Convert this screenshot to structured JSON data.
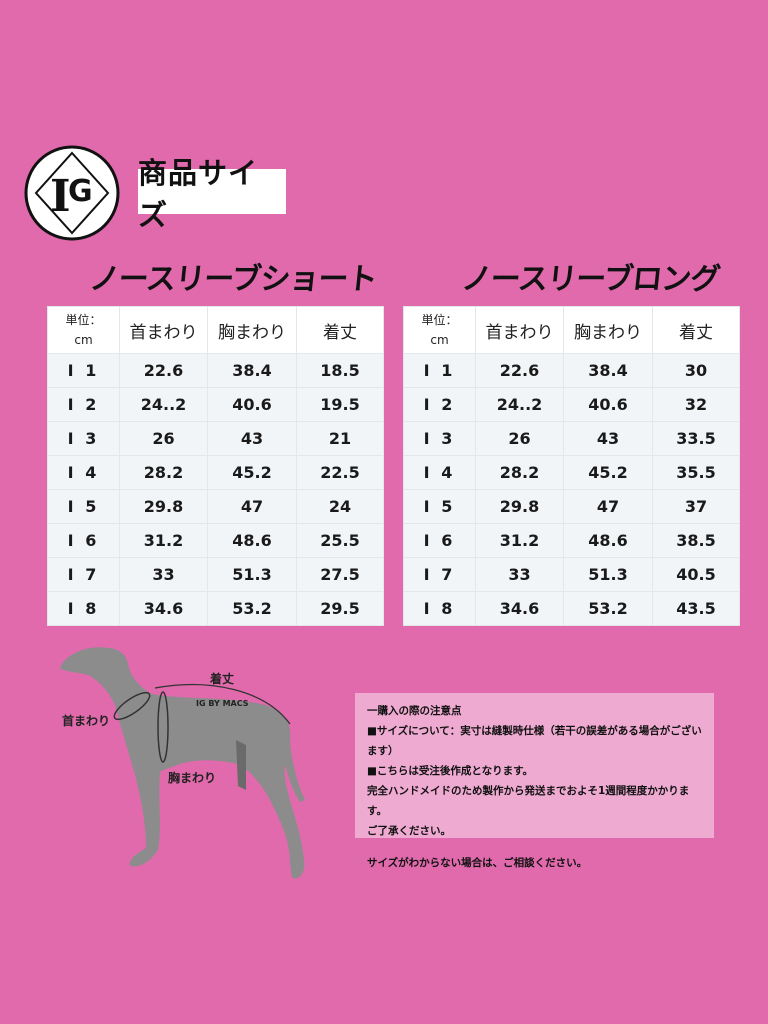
{
  "header": {
    "logo_text": "IG",
    "title": "商品サイズ"
  },
  "colors": {
    "background": "#e06aac",
    "notice_bg": "#eeaad1",
    "dog": "#8c8c8c"
  },
  "tables": [
    {
      "title": "ノースリーブショート",
      "unit_label": "単位：",
      "unit": "cm",
      "columns": [
        "首まわり",
        "胸まわり",
        "着丈"
      ],
      "rows": [
        [
          "I 1",
          "22.6",
          "38.4",
          "18.5"
        ],
        [
          "I 2",
          "24..2",
          "40.6",
          "19.5"
        ],
        [
          "I 3",
          "26",
          "43",
          "21"
        ],
        [
          "I 4",
          "28.2",
          "45.2",
          "22.5"
        ],
        [
          "I 5",
          "29.8",
          "47",
          "24"
        ],
        [
          "I 6",
          "31.2",
          "48.6",
          "25.5"
        ],
        [
          "I 7",
          "33",
          "51.3",
          "27.5"
        ],
        [
          "I 8",
          "34.6",
          "53.2",
          "29.5"
        ]
      ]
    },
    {
      "title": "ノースリーブロング",
      "unit_label": "単位：",
      "unit": "cm",
      "columns": [
        "首まわり",
        "胸まわり",
        "着丈"
      ],
      "rows": [
        [
          "I 1",
          "22.6",
          "38.4",
          "30"
        ],
        [
          "I 2",
          "24..2",
          "40.6",
          "32"
        ],
        [
          "I 3",
          "26",
          "43",
          "33.5"
        ],
        [
          "I 4",
          "28.2",
          "45.2",
          "35.5"
        ],
        [
          "I 5",
          "29.8",
          "47",
          "37"
        ],
        [
          "I 6",
          "31.2",
          "48.6",
          "38.5"
        ],
        [
          "I 7",
          "33",
          "51.3",
          "40.5"
        ],
        [
          "I 8",
          "34.6",
          "53.2",
          "43.5"
        ]
      ]
    }
  ],
  "diagram": {
    "length_label": "着丈",
    "neck_label": "首まわり",
    "chest_label": "胸まわり",
    "brand": "IG BY MACS"
  },
  "notice": {
    "lines": [
      "一購入の際の注意点",
      "■サイズについて：実寸は縫製時仕様（若干の誤差がある場合がございます）",
      "■こちらは受注後作成となります。",
      "完全ハンドメイドのため製作から発送までおよそ1週間程度かかります。",
      "ご了承ください。",
      "",
      "サイズがわからない場合は、ご相談ください。"
    ]
  }
}
